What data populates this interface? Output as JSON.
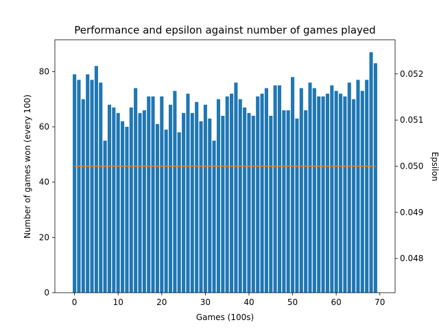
{
  "chart_data": {
    "type": "bar",
    "title": "Performance and epsilon against number of games played",
    "xlabel": "Games (100s)",
    "ylabel": "Number of games won (every 100)",
    "y2label": "Epsilon",
    "xlim": [
      -4.5,
      73.5
    ],
    "ylim": [
      0,
      91.5
    ],
    "y2lim": [
      0.04726,
      0.05274
    ],
    "xticks": [
      "0",
      "10",
      "20",
      "30",
      "40",
      "50",
      "60",
      "70"
    ],
    "yticks": [
      "0",
      "20",
      "40",
      "60",
      "80"
    ],
    "y2ticks": [
      "0.048",
      "0.049",
      "0.050",
      "0.051",
      "0.052"
    ],
    "grid": false,
    "colors": {
      "bars": "#1f77b4",
      "line": "#ff7f0e"
    },
    "series": [
      {
        "type": "bar",
        "axis": "left",
        "x": [
          0,
          1,
          2,
          3,
          4,
          5,
          6,
          7,
          8,
          9,
          10,
          11,
          12,
          13,
          14,
          15,
          16,
          17,
          18,
          19,
          20,
          21,
          22,
          23,
          24,
          25,
          26,
          27,
          28,
          29,
          30,
          31,
          32,
          33,
          34,
          35,
          36,
          37,
          38,
          39,
          40,
          41,
          42,
          43,
          44,
          45,
          46,
          47,
          48,
          49,
          50,
          51,
          52,
          53,
          54,
          55,
          56,
          57,
          58,
          59,
          60,
          61,
          62,
          63,
          64,
          65,
          66,
          67,
          68,
          69
        ],
        "values": [
          79,
          77,
          70,
          79,
          77,
          82,
          76,
          55,
          68,
          67,
          65,
          62,
          60,
          67,
          74,
          65,
          66,
          71,
          71,
          61,
          71,
          59,
          68,
          73,
          58,
          65,
          72,
          65,
          69,
          62,
          68,
          63,
          55,
          70,
          64,
          71,
          72,
          76,
          70,
          67,
          65,
          64,
          71,
          72,
          74,
          64,
          75,
          75,
          66,
          66,
          78,
          63,
          74,
          66,
          76,
          74,
          71,
          71,
          72,
          75,
          73,
          72,
          71,
          76,
          70,
          77,
          73,
          77,
          87,
          83
        ]
      },
      {
        "type": "line",
        "axis": "right",
        "x": [
          0,
          69
        ],
        "values": [
          0.05,
          0.05
        ]
      }
    ]
  }
}
